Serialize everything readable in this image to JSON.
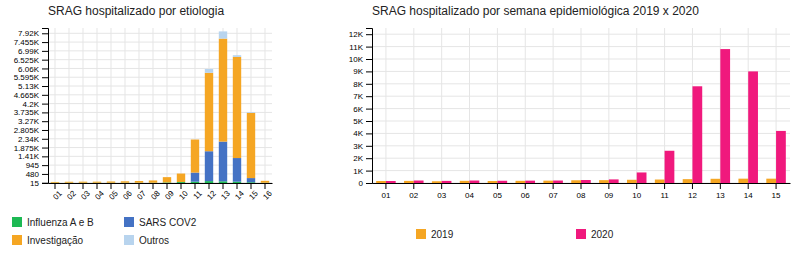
{
  "chart_data": [
    {
      "type": "bar",
      "stacked": true,
      "title": "SRAG hospitalizado por etiologia",
      "categories": [
        "01",
        "02",
        "03",
        "04",
        "05",
        "06",
        "07",
        "08",
        "09",
        "10",
        "11",
        "12",
        "13",
        "14",
        "15",
        "16"
      ],
      "series": [
        {
          "name": "Influenza A e B",
          "color": "#1db954",
          "values": [
            15,
            15,
            15,
            15,
            15,
            15,
            15,
            15,
            30,
            50,
            70,
            100,
            90,
            70,
            40,
            15
          ]
        },
        {
          "name": "SARS COV2",
          "color": "#4472c4",
          "values": [
            0,
            0,
            0,
            0,
            0,
            0,
            0,
            0,
            0,
            0,
            480,
            1580,
            2100,
            1250,
            220,
            0
          ]
        },
        {
          "name": "Investigação",
          "color": "#f5a623",
          "values": [
            40,
            50,
            55,
            55,
            65,
            75,
            90,
            120,
            280,
            450,
            1750,
            4150,
            5450,
            5350,
            3450,
            100
          ]
        },
        {
          "name": "Outros",
          "color": "#b8d4ee",
          "values": [
            0,
            0,
            0,
            0,
            0,
            0,
            0,
            0,
            0,
            0,
            0,
            200,
            380,
            90,
            40,
            0
          ]
        }
      ],
      "ylim": [
        0,
        8200
      ],
      "yticks": [
        15,
        480,
        945,
        {
          "value": 1410,
          "label": "1.41K"
        },
        {
          "value": 1875,
          "label": "1.875K"
        },
        {
          "value": 2340,
          "label": "2.34K"
        },
        {
          "value": 2805,
          "label": "2.805K"
        },
        {
          "value": 3270,
          "label": "3.27K"
        },
        {
          "value": 3735,
          "label": "3.735K"
        },
        {
          "value": 4200,
          "label": "4.2K"
        },
        {
          "value": 4665,
          "label": "4.665K"
        },
        {
          "value": 5130,
          "label": "5.13K"
        },
        {
          "value": 5595,
          "label": "5.595K"
        },
        {
          "value": 6060,
          "label": "6.06K"
        },
        {
          "value": 6525,
          "label": "6.525K"
        },
        {
          "value": 6990,
          "label": "6.99K"
        },
        {
          "value": 7455,
          "label": "7.455K"
        },
        {
          "value": 7920,
          "label": "7.92K"
        }
      ],
      "grid": true,
      "legend": "bottom"
    },
    {
      "type": "bar",
      "title": "SRAG hospitalizado por semana epidemiológica 2019 x 2020",
      "categories": [
        "01",
        "02",
        "03",
        "04",
        "05",
        "06",
        "07",
        "08",
        "09",
        "10",
        "11",
        "12",
        "13",
        "14",
        "15"
      ],
      "series": [
        {
          "name": "2019",
          "color": "#f5a623",
          "values": [
            160,
            170,
            140,
            175,
            160,
            175,
            190,
            220,
            230,
            260,
            280,
            310,
            340,
            350,
            350
          ]
        },
        {
          "name": "2020",
          "color": "#f0197d",
          "values": [
            160,
            200,
            170,
            200,
            180,
            190,
            200,
            240,
            290,
            850,
            2600,
            7800,
            10800,
            9000,
            4200
          ]
        }
      ],
      "ylim": [
        0,
        12500
      ],
      "yticks": [
        0,
        {
          "value": 1000,
          "label": "1K"
        },
        {
          "value": 2000,
          "label": "2K"
        },
        {
          "value": 3000,
          "label": "3K"
        },
        {
          "value": 4000,
          "label": "4K"
        },
        {
          "value": 5000,
          "label": "5K"
        },
        {
          "value": 6000,
          "label": "6K"
        },
        {
          "value": 7000,
          "label": "7K"
        },
        {
          "value": 8000,
          "label": "8K"
        },
        {
          "value": 9000,
          "label": "9K"
        },
        {
          "value": 10000,
          "label": "10K"
        },
        {
          "value": 11000,
          "label": "11K"
        },
        {
          "value": 12000,
          "label": "12K"
        }
      ],
      "grid": true,
      "legend": "bottom"
    }
  ]
}
